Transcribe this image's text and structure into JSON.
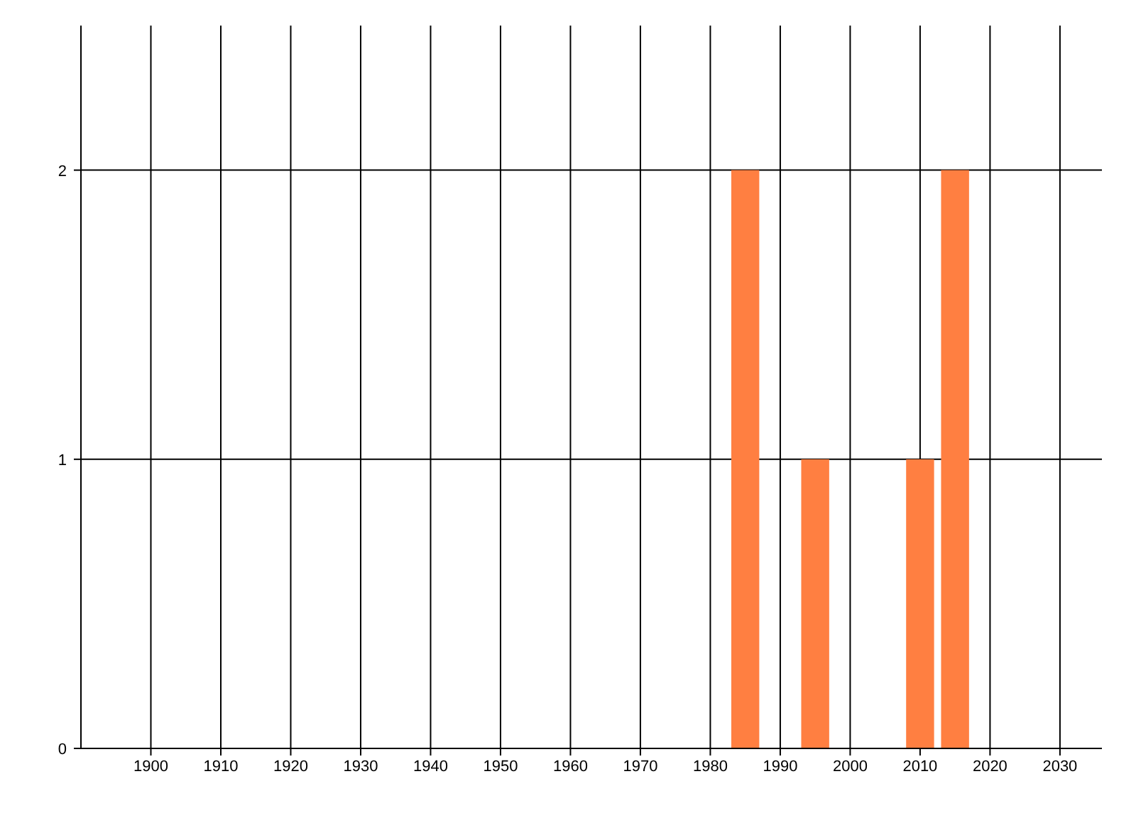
{
  "chart_data": {
    "type": "bar",
    "x": [
      1985,
      1995,
      2010,
      2015
    ],
    "values": [
      2,
      1,
      1,
      2
    ],
    "color": "#ff7f41",
    "xlim": [
      1890,
      2036
    ],
    "xticks": [
      1900,
      1910,
      1920,
      1930,
      1940,
      1950,
      1960,
      1970,
      1980,
      1990,
      2000,
      2010,
      2020,
      2030
    ],
    "ylim": [
      0,
      2.5
    ],
    "yticks": [
      0,
      1,
      2
    ],
    "grid": true
  }
}
